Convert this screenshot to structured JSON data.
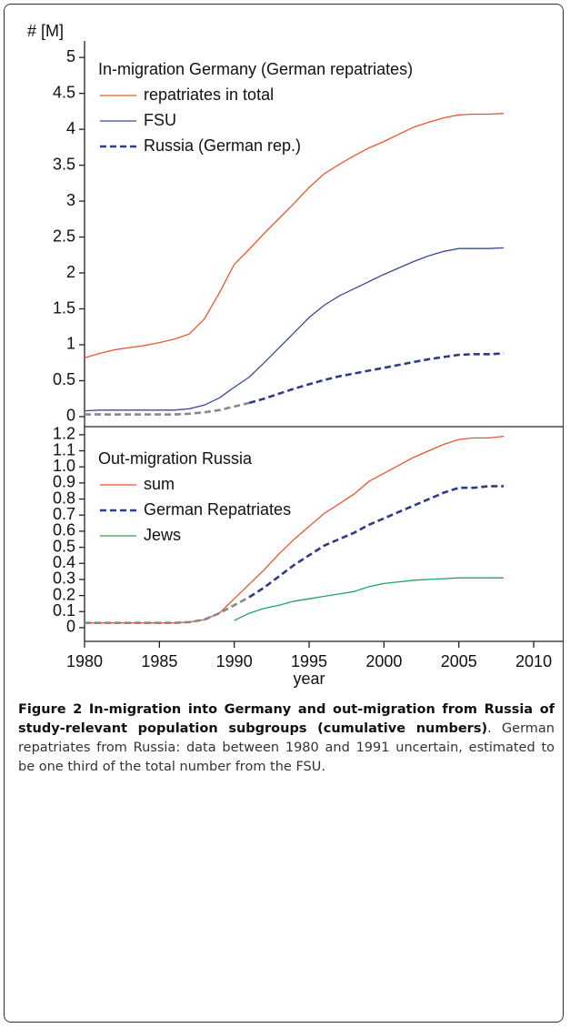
{
  "chart_data": [
    {
      "type": "line",
      "title": "In-migration Germany (German repatriates)",
      "ylabel": "# [M]",
      "x": [
        1980,
        1981,
        1982,
        1983,
        1984,
        1985,
        1986,
        1987,
        1988,
        1989,
        1990,
        1991,
        1992,
        1993,
        1994,
        1995,
        1996,
        1997,
        1998,
        1999,
        2000,
        2001,
        2002,
        2003,
        2004,
        2005,
        2006,
        2007,
        2008
      ],
      "xlim": [
        1980,
        2012
      ],
      "ylim": [
        -0.14,
        5.23
      ],
      "yticks": [
        0,
        0.5,
        1,
        1.5,
        2,
        2.5,
        3,
        3.5,
        4,
        4.5,
        5
      ],
      "series": [
        {
          "name": "repatriates in total",
          "color": "#e8562f",
          "dash": false,
          "values": [
            0.82,
            0.88,
            0.93,
            0.96,
            0.99,
            1.03,
            1.08,
            1.15,
            1.36,
            1.72,
            2.12,
            2.33,
            2.55,
            2.76,
            2.97,
            3.19,
            3.38,
            3.51,
            3.63,
            3.74,
            3.83,
            3.93,
            4.03,
            4.1,
            4.16,
            4.2,
            4.21,
            4.21,
            4.22
          ]
        },
        {
          "name": "FSU",
          "color": "#3b4a96",
          "dash": false,
          "values": [
            0.08,
            0.09,
            0.09,
            0.09,
            0.09,
            0.09,
            0.09,
            0.11,
            0.16,
            0.26,
            0.41,
            0.55,
            0.75,
            0.96,
            1.17,
            1.38,
            1.55,
            1.68,
            1.78,
            1.88,
            1.98,
            2.07,
            2.16,
            2.24,
            2.3,
            2.34,
            2.34,
            2.34,
            2.35
          ]
        },
        {
          "name": "Russia (German rep.)",
          "color": "#2e3a8c",
          "dash": true,
          "uncertain_color": "#888888",
          "uncertain_through": 1991,
          "values": [
            0.03,
            0.03,
            0.03,
            0.03,
            0.03,
            0.03,
            0.03,
            0.04,
            0.06,
            0.09,
            0.14,
            0.19,
            0.25,
            0.32,
            0.39,
            0.45,
            0.51,
            0.56,
            0.6,
            0.64,
            0.68,
            0.72,
            0.76,
            0.8,
            0.83,
            0.86,
            0.87,
            0.87,
            0.88
          ]
        }
      ]
    },
    {
      "type": "line",
      "title": "Out-migration Russia",
      "xlabel": "year",
      "x": [
        1980,
        1981,
        1982,
        1983,
        1984,
        1985,
        1986,
        1987,
        1988,
        1989,
        1990,
        1991,
        1992,
        1993,
        1994,
        1995,
        1996,
        1997,
        1998,
        1999,
        2000,
        2001,
        2002,
        2003,
        2004,
        2005,
        2006,
        2007,
        2008
      ],
      "xlim": [
        1980,
        2012
      ],
      "xticks": [
        1980,
        1985,
        1990,
        1995,
        2000,
        2005,
        2010
      ],
      "ylim": [
        -0.085,
        1.25
      ],
      "yticks": [
        0,
        0.1,
        0.2,
        0.3,
        0.4,
        0.5,
        0.6,
        0.7,
        0.8,
        0.9,
        {
          "value": 1,
          "label": "1.0"
        },
        1.1,
        1.2
      ],
      "series": [
        {
          "name": "sum",
          "color": "#e8562f",
          "dash": false,
          "values": [
            0.03,
            0.03,
            0.03,
            0.03,
            0.03,
            0.03,
            0.03,
            0.035,
            0.05,
            0.09,
            0.18,
            0.27,
            0.36,
            0.46,
            0.55,
            0.63,
            0.71,
            0.77,
            0.83,
            0.91,
            0.96,
            1.01,
            1.06,
            1.1,
            1.14,
            1.17,
            1.18,
            1.18,
            1.19
          ]
        },
        {
          "name": "German Repatriates",
          "color": "#2e3a8c",
          "dash": true,
          "uncertain_color": "#888888",
          "uncertain_through": 1991,
          "values": [
            0.03,
            0.03,
            0.03,
            0.03,
            0.03,
            0.03,
            0.03,
            0.035,
            0.05,
            0.09,
            0.14,
            0.19,
            0.25,
            0.32,
            0.39,
            0.45,
            0.51,
            0.55,
            0.59,
            0.64,
            0.68,
            0.72,
            0.76,
            0.8,
            0.84,
            0.87,
            0.87,
            0.88,
            0.88
          ]
        },
        {
          "name": "Jews",
          "color": "#1fa463",
          "dash": false,
          "values": [
            null,
            null,
            null,
            null,
            null,
            null,
            null,
            null,
            null,
            null,
            0.045,
            0.09,
            0.12,
            0.14,
            0.165,
            0.18,
            0.195,
            0.21,
            0.225,
            0.255,
            0.275,
            0.285,
            0.295,
            0.3,
            0.305,
            0.31,
            0.31,
            0.31,
            0.31
          ]
        }
      ]
    }
  ],
  "caption": {
    "title": "Figure 2 In-migration into Germany and out-migration from Russia of study-relevant population subgroups (cumulative numbers)",
    "text": ". German repatriates from Russia: data between 1980 and 1991 uncertain, estimated to be one third of the total number from the FSU."
  }
}
